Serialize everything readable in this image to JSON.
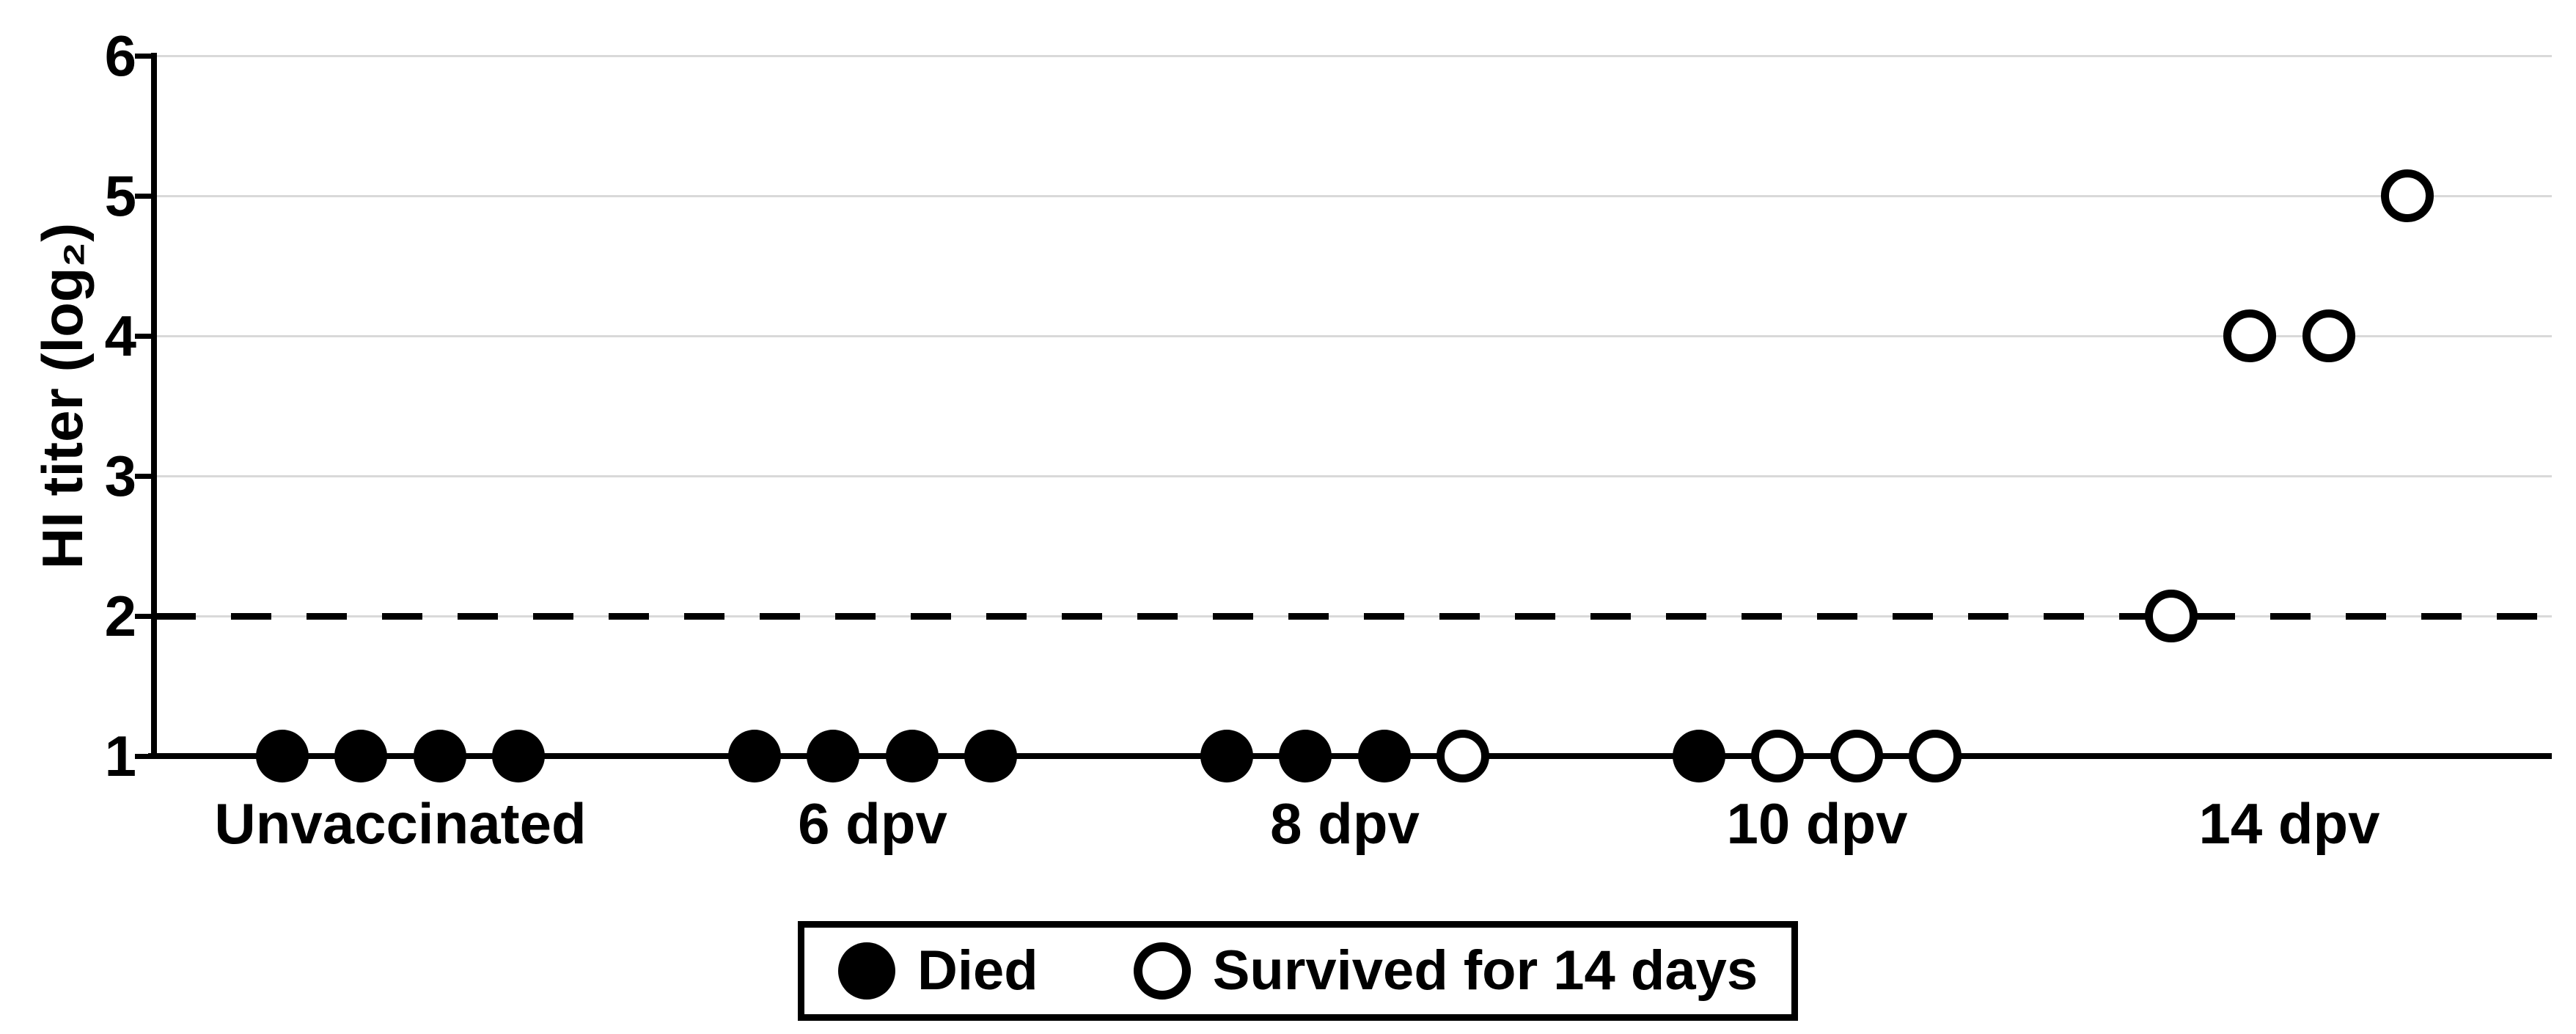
{
  "figure": {
    "background_color": "#ffffff",
    "foreground_color": "#000000",
    "gridline_color": "#d9d9d9"
  },
  "chart_data": {
    "type": "scatter",
    "title": "",
    "xlabel": "",
    "ylabel": "HI titer (log₂)",
    "categories": [
      "Unvaccinated",
      "6 dpv",
      "8 dpv",
      "10 dpv",
      "14 dpv"
    ],
    "ylim": [
      1,
      6
    ],
    "yticks": [
      1,
      2,
      3,
      4,
      5,
      6
    ],
    "ytick_labels": [
      "1",
      "2",
      "3",
      "4",
      "5",
      "6"
    ],
    "grid": "horizontal-light-gray",
    "legend_position": "bottom-center",
    "threshold_line": {
      "y": 2,
      "style": "dashed",
      "color": "#000000"
    },
    "series": [
      {
        "name": "Died",
        "marker": "filled-circle",
        "color": "#000000",
        "points": [
          {
            "category": "Unvaccinated",
            "slot": 0,
            "y": 1
          },
          {
            "category": "Unvaccinated",
            "slot": 1,
            "y": 1
          },
          {
            "category": "Unvaccinated",
            "slot": 2,
            "y": 1
          },
          {
            "category": "Unvaccinated",
            "slot": 3,
            "y": 1
          },
          {
            "category": "6 dpv",
            "slot": 0,
            "y": 1
          },
          {
            "category": "6 dpv",
            "slot": 1,
            "y": 1
          },
          {
            "category": "6 dpv",
            "slot": 2,
            "y": 1
          },
          {
            "category": "6 dpv",
            "slot": 3,
            "y": 1
          },
          {
            "category": "8 dpv",
            "slot": 0,
            "y": 1
          },
          {
            "category": "8 dpv",
            "slot": 1,
            "y": 1
          },
          {
            "category": "8 dpv",
            "slot": 2,
            "y": 1
          },
          {
            "category": "10 dpv",
            "slot": 0,
            "y": 1
          }
        ]
      },
      {
        "name": "Survived for 14 days",
        "marker": "open-circle",
        "color": "#000000",
        "points": [
          {
            "category": "8 dpv",
            "slot": 3,
            "y": 1
          },
          {
            "category": "10 dpv",
            "slot": 1,
            "y": 1
          },
          {
            "category": "10 dpv",
            "slot": 2,
            "y": 1
          },
          {
            "category": "10 dpv",
            "slot": 3,
            "y": 1
          },
          {
            "category": "14 dpv",
            "slot": 0,
            "y": 2
          },
          {
            "category": "14 dpv",
            "slot": 1,
            "y": 4
          },
          {
            "category": "14 dpv",
            "slot": 2,
            "y": 4
          },
          {
            "category": "14 dpv",
            "slot": 3,
            "y": 5
          }
        ]
      }
    ]
  }
}
